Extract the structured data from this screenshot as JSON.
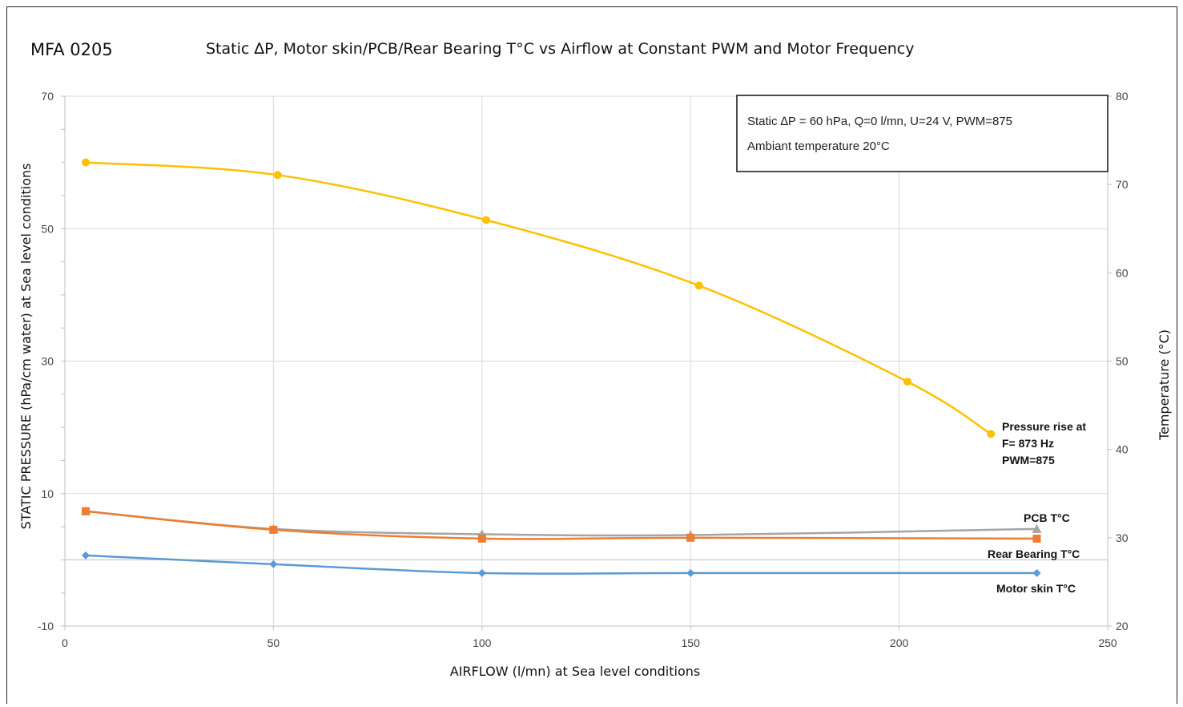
{
  "header": {
    "model": "MFA 0205",
    "title": "Static ∆P, Motor skin/PCB/Rear Bearing T°C vs Airflow at Constant PWM and Motor Frequency"
  },
  "note": {
    "line1": "Static ∆P  = 60 hPa, Q=0 l/mn, U=24 V, PWM=875",
    "line2": "Ambiant temperature 20°C"
  },
  "chart_data": {
    "type": "line",
    "xlabel": "AIRFLOW (l/mn) at Sea level conditions",
    "ylabel": "STATIC PRESSURE (hPa/cm water) at Sea level conditions",
    "y2label": "Temperature (°C)",
    "xlim": [
      0,
      250
    ],
    "ylim": [
      -10,
      70
    ],
    "y2lim": [
      20,
      80
    ],
    "xticks": [
      0,
      50,
      100,
      150,
      200,
      250
    ],
    "yticks": [
      -10,
      10,
      30,
      50,
      70
    ],
    "y2ticks": [
      20,
      30,
      40,
      50,
      60,
      70,
      80
    ],
    "grid": true,
    "series": [
      {
        "name": "Pressure rise at F= 873 Hz PWM=875",
        "label_lines": [
          "Pressure rise at",
          "F= 873 Hz",
          "PWM=875"
        ],
        "axis": "left",
        "color": "#FFC000",
        "marker": "circle",
        "x": [
          5,
          51,
          101,
          152,
          202,
          222
        ],
        "y": [
          60,
          58.1,
          51.3,
          41.4,
          26.9,
          19
        ]
      },
      {
        "name": "PCB T°C",
        "label_lines": [
          "PCB T°C"
        ],
        "axis": "right",
        "color": "#A5A5A5",
        "marker": "triangle",
        "x": [
          5,
          50,
          100,
          150,
          233
        ],
        "y": [
          33,
          31,
          30.4,
          30.3,
          31
        ]
      },
      {
        "name": "Rear Bearing T°C",
        "label_lines": [
          "Rear Bearing T°C"
        ],
        "axis": "right",
        "color": "#ED7D31",
        "marker": "square",
        "x": [
          5,
          50,
          100,
          150,
          233
        ],
        "y": [
          33,
          30.9,
          29.9,
          30,
          29.9
        ]
      },
      {
        "name": "Motor skin T°C",
        "label_lines": [
          "Motor skin T°C"
        ],
        "axis": "right",
        "color": "#5B9BD5",
        "marker": "diamond",
        "x": [
          5,
          50,
          100,
          150,
          233
        ],
        "y": [
          28,
          27,
          26,
          26,
          26
        ]
      }
    ]
  }
}
